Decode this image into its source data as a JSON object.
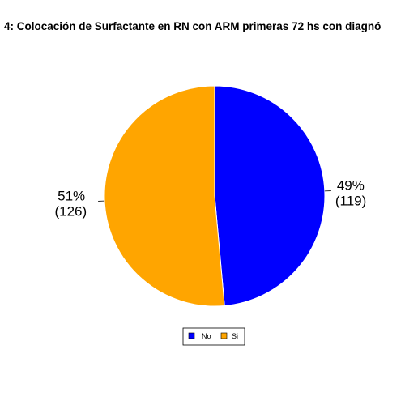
{
  "chart_data": {
    "type": "pie",
    "title": "4: Colocación de Surfactante en RN con ARM primeras 72 hs con diagnó",
    "categories": [
      "No",
      "Si"
    ],
    "values": [
      119,
      126
    ],
    "percent_labels": [
      "49%",
      "51%"
    ],
    "count_labels": [
      "(119)",
      "(126)"
    ],
    "colors": [
      "#0000ff",
      "#ffa500"
    ],
    "legend": {
      "placement": "bottom",
      "entries": [
        "No",
        "Si"
      ]
    }
  }
}
